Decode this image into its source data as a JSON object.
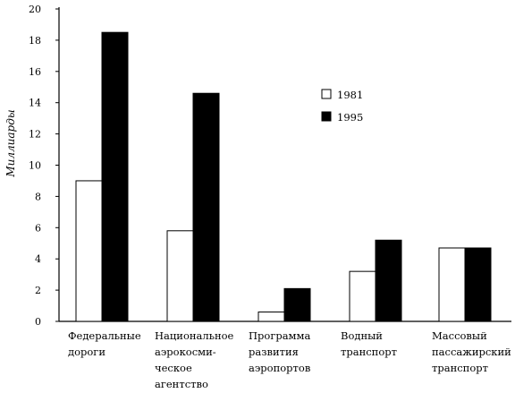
{
  "chart_data": {
    "type": "bar",
    "title": "",
    "ylabel": "Миллиарды",
    "xlabel": "",
    "ylim": [
      0,
      20
    ],
    "yticks": [
      0,
      2,
      4,
      6,
      8,
      10,
      12,
      14,
      16,
      18,
      20
    ],
    "categories": [
      [
        "Федеральные",
        "дороги"
      ],
      [
        "Национальное",
        "аэрокосми-",
        "ческое",
        "агентство"
      ],
      [
        "Программа",
        "развития",
        "аэропортов"
      ],
      [
        "Водный",
        "транспорт"
      ],
      [
        "Массовый",
        "пассажирский",
        "транспорт"
      ]
    ],
    "series": [
      {
        "name": "1981",
        "color": "#ffffff",
        "values": [
          9.0,
          5.8,
          0.6,
          3.2,
          4.7
        ]
      },
      {
        "name": "1995",
        "color": "#000000",
        "values": [
          18.5,
          14.6,
          2.1,
          5.2,
          4.7
        ]
      }
    ],
    "legend_position": "top-right",
    "grid": false
  }
}
